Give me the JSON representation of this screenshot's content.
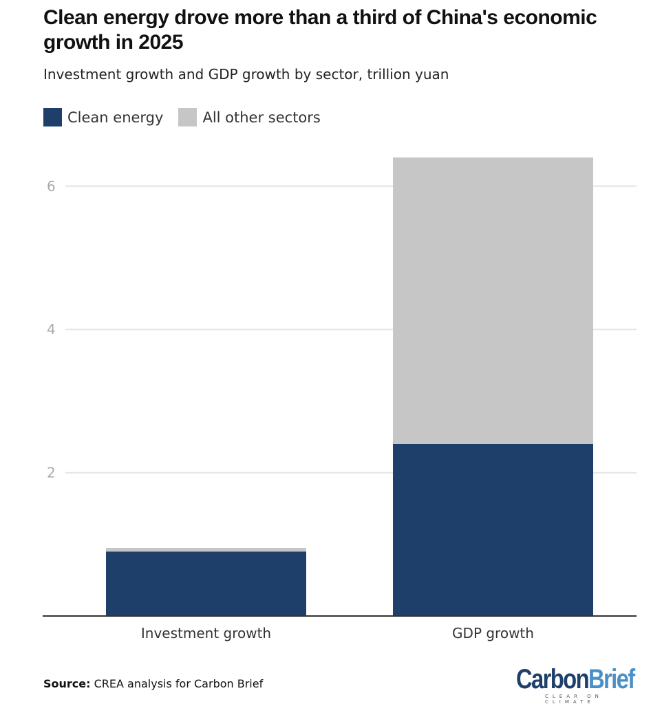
{
  "title": "Clean energy drove more than a third of China's economic growth in 2025",
  "subtitle": "Investment growth and GDP growth by sector, trillion yuan",
  "source": {
    "label": "Source:",
    "text": "CREA analysis for Carbon Brief"
  },
  "logo": {
    "part1": "Carbon",
    "part2": "Brief",
    "tagline": "CLEAR ON CLIMATE"
  },
  "colors": {
    "clean": "#1f3f6b",
    "other": "#c6c6c6",
    "logo1": "#1f3f6b",
    "logo2": "#4a90c8"
  },
  "chart_data": {
    "type": "bar",
    "stacked": true,
    "categories": [
      "Investment growth",
      "GDP growth"
    ],
    "series": [
      {
        "name": "Clean energy",
        "values": [
          0.9,
          2.4
        ]
      },
      {
        "name": "All other sectors",
        "values": [
          0.05,
          4.0
        ]
      }
    ],
    "ylim": [
      0,
      6.4
    ],
    "yticks": [
      2,
      4,
      6
    ],
    "grid": true,
    "legend": "top-left"
  }
}
